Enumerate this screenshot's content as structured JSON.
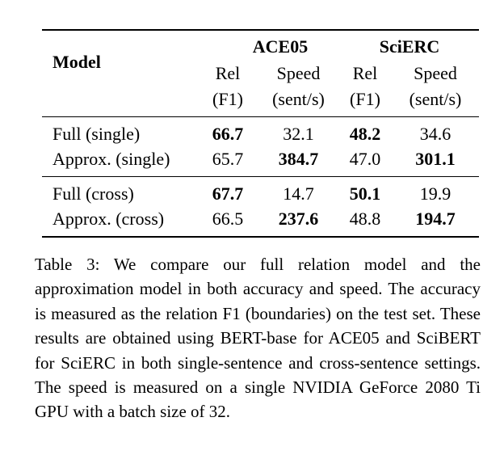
{
  "table": {
    "header": {
      "model_label": "Model",
      "dataset_ace": "ACE05",
      "dataset_scierc": "SciERC",
      "col_rel": "Rel",
      "col_rel_sub": "(F1)",
      "col_speed": "Speed",
      "col_speed_sub": "(sent/s)"
    },
    "groups": [
      {
        "rows": [
          {
            "model": "Full (single)",
            "ace_rel": "66.7",
            "ace_speed": "32.1",
            "sci_rel": "48.2",
            "sci_speed": "34.6"
          },
          {
            "model": "Approx. (single)",
            "ace_rel": "65.7",
            "ace_speed": "384.7",
            "sci_rel": "47.0",
            "sci_speed": "301.1"
          }
        ]
      },
      {
        "rows": [
          {
            "model": "Full (cross)",
            "ace_rel": "67.7",
            "ace_speed": "14.7",
            "sci_rel": "50.1",
            "sci_speed": "19.9"
          },
          {
            "model": "Approx. (cross)",
            "ace_rel": "66.5",
            "ace_speed": "237.6",
            "sci_rel": "48.8",
            "sci_speed": "194.7"
          }
        ]
      }
    ]
  },
  "caption": {
    "text": "Table 3: We compare our full relation model and the approximation model in both accuracy and speed. The accuracy is measured as the relation F1 (boundaries) on the test set. These results are obtained using BERT-base for ACE05 and SciBERT for SciERC in both single-sentence and cross-sentence settings. The speed is measured on a single NVIDIA GeForce 2080 Ti GPU with a batch size of 32."
  }
}
